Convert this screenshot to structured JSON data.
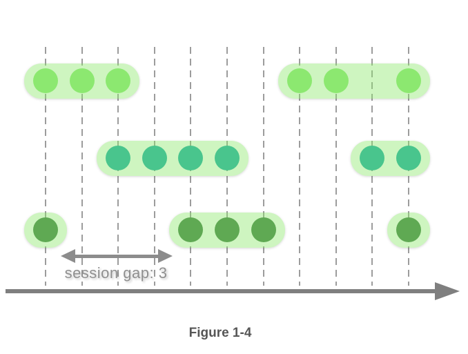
{
  "caption": "Figure 1-4",
  "diagram": {
    "session_gap_label": "session gap: 3",
    "tick_count": 11,
    "rows": [
      {
        "id": "stream-1",
        "dot_color": "#8ce870",
        "sessions": [
          [
            0,
            1,
            2
          ],
          [
            7,
            8,
            10
          ]
        ]
      },
      {
        "id": "stream-2",
        "dot_color": "#49c58d",
        "sessions": [
          [
            2,
            3,
            4,
            5
          ],
          [
            9,
            10
          ]
        ]
      },
      {
        "id": "stream-3",
        "dot_color": "#5fa953",
        "sessions": [
          [
            0
          ],
          [
            4,
            5,
            6
          ],
          [
            10
          ]
        ]
      }
    ]
  },
  "colors": {
    "gridline": "#9c9c9c",
    "window_fill": "rgba(139, 232, 106, 0.42)",
    "gap_arrow": "#8c8c8c",
    "gap_label_text": "#8f8f8f",
    "axis": "#7f7f7f",
    "caption_text": "#565656"
  }
}
